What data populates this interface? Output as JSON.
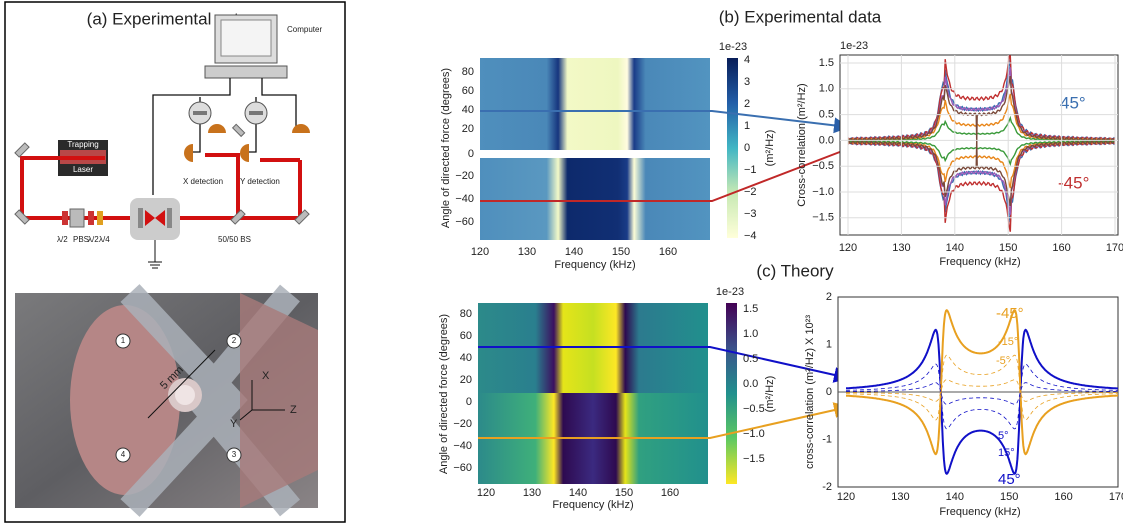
{
  "panel_a": {
    "title": "(a) Experimental set-up",
    "labels": {
      "computer": "Computer",
      "trapping": "Trapping",
      "laser": "Laser",
      "x_detection": "X detection",
      "y_detection": "Y detection",
      "half_wave_1": "λ/2",
      "pbs": "PBS",
      "half_wave_2": "λ/2",
      "quarter_wave": "λ/4",
      "beam_splitter": "50/50 BS"
    },
    "photo_labels": [
      "1",
      "2",
      "3",
      "4",
      "5 mm",
      "X",
      "Y",
      "Z"
    ]
  },
  "panel_b": {
    "title": "(b) Experimental data",
    "heatmap": {
      "x_label": "Frequency (kHz)",
      "y_label": "Angle of directed force (degrees)",
      "x_ticks": [
        "120",
        "130",
        "140",
        "150",
        "160"
      ],
      "y_ticks": [
        "80",
        "60",
        "40",
        "20",
        "0",
        "−20",
        "−40",
        "−60"
      ],
      "colorbar_scale": "1e-23",
      "colorbar_ticks": [
        "4",
        "3",
        "2",
        "1",
        "0",
        "−1",
        "−2",
        "−3",
        "−4"
      ],
      "colorbar_label": "(m²/Hz)"
    },
    "spectrum": {
      "scale": "1e-23",
      "y_label": "Cross-correlation (m²/Hz)",
      "x_label": "Frequency (kHz)",
      "y_ticks": [
        "1.5",
        "1.0",
        "0.5",
        "0.0",
        "−0.5",
        "−1.0",
        "−1.5"
      ],
      "x_ticks": [
        "120",
        "130",
        "140",
        "150",
        "160",
        "170"
      ],
      "annotations": [
        "45°",
        "-45°"
      ]
    }
  },
  "panel_c": {
    "title": "(c) Theory",
    "heatmap": {
      "x_label": "Frequency (kHz)",
      "y_label": "Angle of directed force (degrees)",
      "x_ticks": [
        "120",
        "130",
        "140",
        "150",
        "160"
      ],
      "y_ticks": [
        "80",
        "60",
        "40",
        "20",
        "0",
        "−20",
        "−40",
        "−60"
      ],
      "colorbar_scale": "1e-23",
      "colorbar_ticks": [
        "1.5",
        "1.0",
        "0.5",
        "0.0",
        "−0.5",
        "−1.0",
        "−1.5"
      ],
      "colorbar_label": "(m²/Hz)"
    },
    "spectrum": {
      "y_label": "cross-correlation (m²/Hz) X 10²³",
      "x_label": "Frequency (kHz)",
      "y_ticks": [
        "2",
        "1",
        "0",
        "-1",
        "-2"
      ],
      "x_ticks": [
        "120",
        "130",
        "140",
        "150",
        "160",
        "170"
      ],
      "annotations": [
        "-45°",
        "-15°",
        "-5°",
        "5°",
        "15°",
        "45°"
      ]
    }
  }
}
